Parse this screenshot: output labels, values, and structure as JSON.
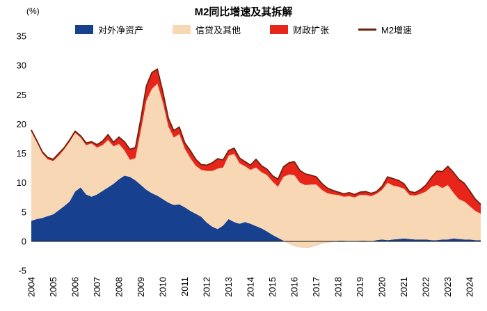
{
  "chart_data": {
    "type": "area",
    "stacked": true,
    "title": "M2同比增速及其拆解",
    "unit_label": "(%)",
    "legend_position": "top",
    "grid": false,
    "x_start": 2004,
    "x_step": 0.25,
    "x_tick_labels": [
      "2004",
      "2005",
      "2006",
      "2007",
      "2008",
      "2009",
      "2010",
      "2011",
      "2012",
      "2013",
      "2014",
      "2015",
      "2016",
      "2017",
      "2018",
      "2019",
      "2020",
      "2021",
      "2022",
      "2023",
      "2024"
    ],
    "ylim": [
      -5,
      35
    ],
    "y_ticks": [
      35,
      30,
      25,
      20,
      15,
      10,
      5,
      0,
      -5
    ],
    "series": [
      {
        "name": "对外净资产",
        "type": "area",
        "color": "#17418e",
        "values": [
          3.5,
          3.8,
          4.0,
          4.3,
          4.6,
          5.3,
          6.0,
          6.8,
          8.5,
          9.2,
          8.0,
          7.6,
          8.0,
          8.6,
          9.2,
          9.8,
          10.6,
          11.2,
          11.0,
          10.4,
          9.6,
          8.8,
          8.2,
          7.8,
          7.2,
          6.6,
          6.2,
          6.3,
          5.8,
          5.2,
          4.7,
          4.2,
          3.2,
          2.5,
          2.1,
          2.7,
          3.8,
          3.3,
          3.0,
          3.3,
          3.0,
          2.6,
          2.2,
          1.7,
          1.1,
          0.6,
          0.1,
          -0.4,
          -0.8,
          -1.0,
          -1.1,
          -1.0,
          -0.7,
          -0.4,
          -0.2,
          -0.1,
          0.1,
          0.1,
          0.0,
          0.0,
          0.1,
          0.1,
          0.0,
          0.2,
          0.3,
          0.2,
          0.3,
          0.4,
          0.5,
          0.4,
          0.3,
          0.3,
          0.3,
          0.2,
          0.2,
          0.3,
          0.3,
          0.5,
          0.4,
          0.3,
          0.3,
          0.2,
          0.2
        ]
      },
      {
        "name": "信贷及其他",
        "type": "area",
        "color": "#f8d8b4",
        "values": [
          15.2,
          13.1,
          11.0,
          9.7,
          9.1,
          9.3,
          9.7,
          10.2,
          10.0,
          8.5,
          8.4,
          9.1,
          8.0,
          7.8,
          8.1,
          6.4,
          6.0,
          4.3,
          2.9,
          3.8,
          9.4,
          15.2,
          17.8,
          19.1,
          16.5,
          13.0,
          11.5,
          12.0,
          10.0,
          9.0,
          8.2,
          8.0,
          8.8,
          9.5,
          10.3,
          9.9,
          10.8,
          11.6,
          10.3,
          9.5,
          9.2,
          10.0,
          9.6,
          9.6,
          9.1,
          8.7,
          10.9,
          11.8,
          12.1,
          11.0,
          10.7,
          10.7,
          10.4,
          9.2,
          8.4,
          8.1,
          7.8,
          7.5,
          7.7,
          7.5,
          7.8,
          7.8,
          7.7,
          7.9,
          8.5,
          9.8,
          9.2,
          8.9,
          8.5,
          7.5,
          7.5,
          7.8,
          8.2,
          9.1,
          9.4,
          8.8,
          9.3,
          7.8,
          6.8,
          6.5,
          5.7,
          5.0,
          4.5
        ]
      },
      {
        "name": "财政扩张",
        "type": "area",
        "color": "#e8251b",
        "values": [
          0.3,
          0.3,
          0.3,
          0.3,
          0.3,
          0.4,
          0.3,
          0.3,
          0.3,
          0.3,
          0.4,
          0.3,
          0.5,
          0.7,
          0.9,
          0.7,
          1.2,
          1.5,
          1.8,
          1.8,
          2.0,
          2.5,
          2.8,
          2.5,
          1.8,
          1.4,
          1.2,
          1.2,
          1.0,
          1.3,
          1.1,
          0.9,
          1.0,
          1.4,
          1.7,
          1.3,
          0.9,
          1.0,
          0.9,
          0.8,
          0.8,
          1.4,
          1.1,
          1.0,
          1.0,
          1.3,
          1.7,
          2.0,
          2.3,
          2.1,
          1.9,
          1.6,
          1.3,
          1.1,
          0.9,
          0.7,
          0.5,
          0.5,
          0.6,
          0.5,
          0.5,
          0.6,
          0.5,
          0.4,
          0.6,
          1.0,
          1.2,
          1.1,
          0.8,
          0.6,
          0.5,
          0.7,
          1.1,
          1.6,
          2.4,
          2.8,
          3.2,
          3.5,
          3.4,
          3.1,
          2.6,
          2.0,
          1.6
        ]
      },
      {
        "name": "M2增速",
        "type": "line",
        "color": "#6e220e",
        "values": [
          19.0,
          17.2,
          15.3,
          14.3,
          14.0,
          15.0,
          16.0,
          17.3,
          18.8,
          18.0,
          16.8,
          17.0,
          16.5,
          17.1,
          18.2,
          16.9,
          17.8,
          17.0,
          15.7,
          16.0,
          21.0,
          26.5,
          28.8,
          29.4,
          25.5,
          21.0,
          18.9,
          19.5,
          16.8,
          15.5,
          14.0,
          13.1,
          13.0,
          13.4,
          14.1,
          13.9,
          15.5,
          15.9,
          14.2,
          13.6,
          13.0,
          14.0,
          12.9,
          12.3,
          11.2,
          10.6,
          12.7,
          13.4,
          13.6,
          12.1,
          11.5,
          11.3,
          11.0,
          9.9,
          9.1,
          8.7,
          8.4,
          8.1,
          8.3,
          8.0,
          8.4,
          8.5,
          8.2,
          8.5,
          9.4,
          11.0,
          10.7,
          10.4,
          9.8,
          8.5,
          8.3,
          8.8,
          9.6,
          10.9,
          12.0,
          11.9,
          12.8,
          11.8,
          10.6,
          9.9,
          8.6,
          7.2,
          6.3
        ]
      }
    ]
  }
}
